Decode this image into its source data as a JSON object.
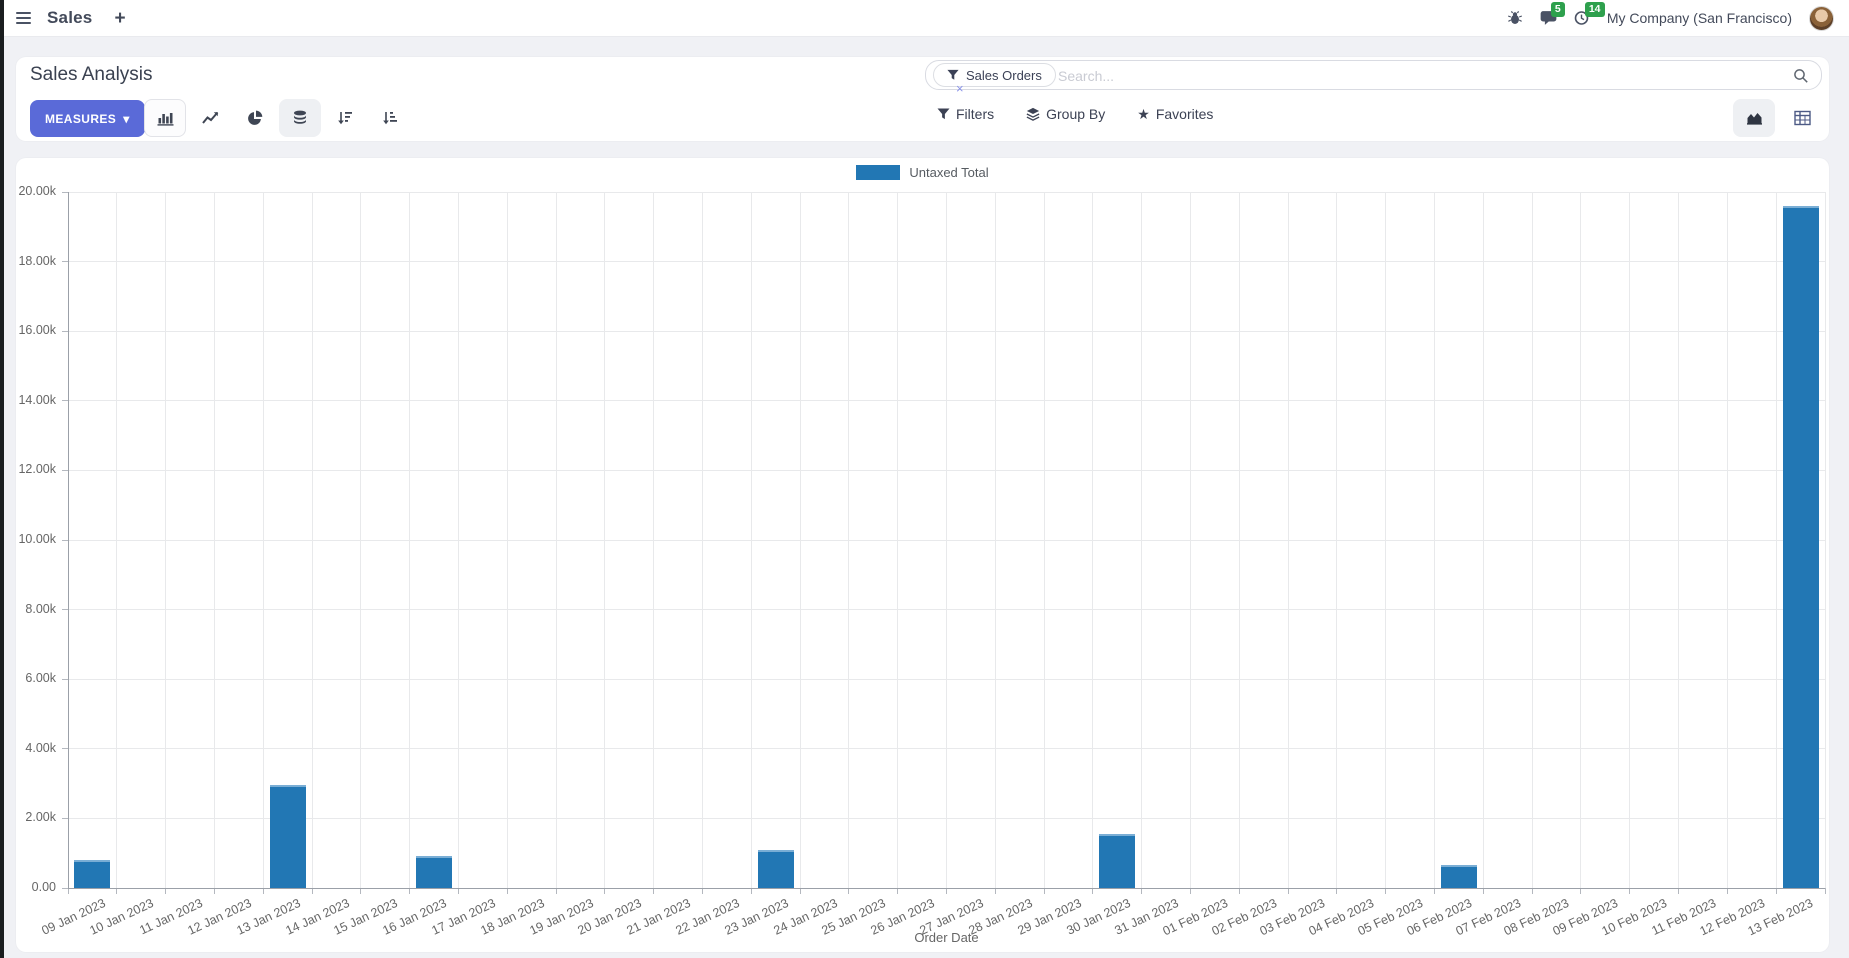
{
  "icons": {
    "plus": "+",
    "caret_down": "▾",
    "star": "★",
    "remove": "×"
  },
  "nav": {
    "app_label": "Sales",
    "company": "My Company (San Francisco)",
    "messages_badge": "5",
    "activities_badge": "14"
  },
  "control_panel": {
    "title": "Sales Analysis",
    "measures_label": "MEASURES",
    "filters_label": "Filters",
    "group_by_label": "Group By",
    "favorites_label": "Favorites",
    "search": {
      "facet_label": "Sales Orders",
      "placeholder": "Search..."
    }
  },
  "chart_data": {
    "type": "bar",
    "title": "",
    "xlabel": "Order Date",
    "ylabel": "",
    "ylim": [
      0,
      20000
    ],
    "ytick_step": 2000,
    "ytick_labels": [
      "0.00",
      "2.00k",
      "4.00k",
      "6.00k",
      "8.00k",
      "10.00k",
      "12.00k",
      "14.00k",
      "16.00k",
      "18.00k",
      "20.00k"
    ],
    "grid": true,
    "legend_position": "top",
    "categories": [
      "09 Jan 2023",
      "10 Jan 2023",
      "11 Jan 2023",
      "12 Jan 2023",
      "13 Jan 2023",
      "14 Jan 2023",
      "15 Jan 2023",
      "16 Jan 2023",
      "17 Jan 2023",
      "18 Jan 2023",
      "19 Jan 2023",
      "20 Jan 2023",
      "21 Jan 2023",
      "22 Jan 2023",
      "23 Jan 2023",
      "24 Jan 2023",
      "25 Jan 2023",
      "26 Jan 2023",
      "27 Jan 2023",
      "28 Jan 2023",
      "29 Jan 2023",
      "30 Jan 2023",
      "31 Jan 2023",
      "01 Feb 2023",
      "02 Feb 2023",
      "03 Feb 2023",
      "04 Feb 2023",
      "05 Feb 2023",
      "06 Feb 2023",
      "07 Feb 2023",
      "08 Feb 2023",
      "09 Feb 2023",
      "10 Feb 2023",
      "11 Feb 2023",
      "12 Feb 2023",
      "13 Feb 2023"
    ],
    "series": [
      {
        "name": "Untaxed Total",
        "color": "#2277b4",
        "values": [
          810,
          0,
          0,
          0,
          2950,
          0,
          0,
          930,
          0,
          0,
          0,
          0,
          0,
          0,
          1100,
          0,
          0,
          0,
          0,
          0,
          0,
          1550,
          0,
          0,
          0,
          0,
          0,
          0,
          660,
          0,
          0,
          0,
          0,
          0,
          0,
          19600
        ]
      }
    ]
  }
}
